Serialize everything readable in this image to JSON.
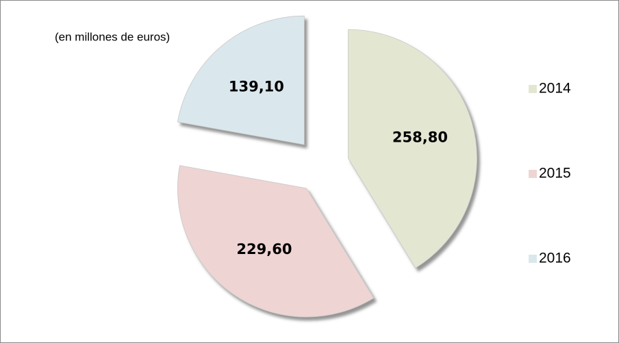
{
  "chart_data": {
    "type": "pie",
    "subtitle": "(en millones de euros)",
    "categories": [
      "2014",
      "2015",
      "2016"
    ],
    "values": [
      258.8,
      229.6,
      139.1
    ],
    "value_labels": [
      "258,80",
      "229,60",
      "139,10"
    ],
    "colors": [
      "#e3e7d2",
      "#efd4d4",
      "#dae8ed"
    ],
    "legend": "right"
  }
}
